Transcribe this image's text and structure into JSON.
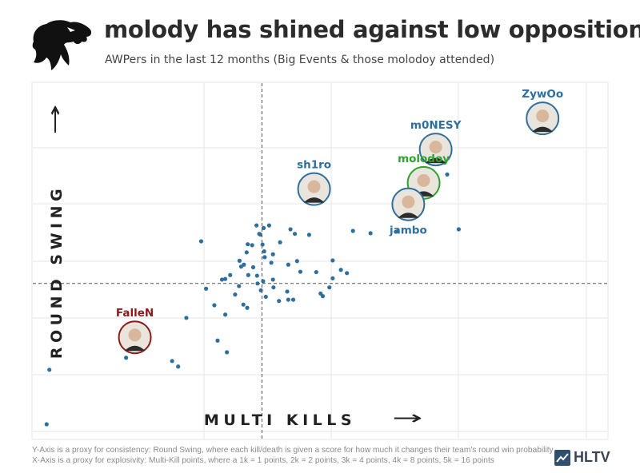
{
  "header": {
    "title": "molody has shined against low opposition",
    "subtitle": "AWPers in the last 12 months (Big Events & those molodoy attended)"
  },
  "logo": {
    "icon": "panther-logo-icon"
  },
  "footer": {
    "line1": "Y-Axis is a proxy for consistency: Round Swing, where each kill/death is given a  score for how much it changes their team's round win probability",
    "line2": "X-Axis is a proxy for explosivity: Multi-Kill points, where a 1k = 1 points, 2k = 2 points, 3k = 4 points, 4k = 8 points, 5k = 16 points",
    "brand": "HLTV",
    "brand_icon": "hltv-logo-icon"
  },
  "chart_data": {
    "type": "scatter",
    "xlabel": "MULTI KILLS",
    "ylabel": "ROUND SWING",
    "x_arrow": "→",
    "y_arrow": "↑",
    "grid": true,
    "xlim": [
      0,
      100
    ],
    "ylim": [
      0,
      100
    ],
    "average_lines": {
      "x": 40.8,
      "y": 43.4
    },
    "colors": {
      "point": "#2e6f9e",
      "label": "#2e6f9e",
      "highlight": "#2ca32c",
      "lowlight": "#8b1a1a",
      "reference": "#555555"
    },
    "labeled_players": [
      {
        "name": "ZywOo",
        "x": 92.0,
        "y": 94.3,
        "color": "#2e6f9e",
        "avatar": "player-avatar-icon"
      },
      {
        "name": "m0NESY",
        "x": 72.5,
        "y": 84.7,
        "color": "#2e6f9e",
        "avatar": "player-avatar-icon"
      },
      {
        "name": "sh1ro",
        "x": 50.3,
        "y": 72.5,
        "color": "#2e6f9e",
        "avatar": "player-avatar-icon"
      },
      {
        "name": "molodoy",
        "x": 70.3,
        "y": 74.4,
        "color": "#2ca32c",
        "avatar": "player-avatar-icon"
      },
      {
        "name": "jambo",
        "x": 67.5,
        "y": 67.8,
        "color": "#2e6f9e",
        "avatar": "player-avatar-icon"
      },
      {
        "name": "FalleN",
        "x": 17.6,
        "y": 26.8,
        "color": "#8b1a1a",
        "avatar": "player-avatar-icon"
      }
    ],
    "points": [
      [
        1.5,
        0
      ],
      [
        2,
        16.8
      ],
      [
        16,
        20.5
      ],
      [
        17.5,
        29.5
      ],
      [
        18.8,
        28.9
      ],
      [
        24.4,
        19.5
      ],
      [
        25.5,
        17.8
      ],
      [
        27,
        32.8
      ],
      [
        34.1,
        33.8
      ],
      [
        34.4,
        22.2
      ],
      [
        38.1,
        35.9
      ],
      [
        37.4,
        36.9
      ],
      [
        35.9,
        40
      ],
      [
        36.6,
        42.6
      ],
      [
        34.1,
        44.8
      ],
      [
        35,
        46
      ],
      [
        38.3,
        46
      ],
      [
        37.5,
        49.2
      ],
      [
        38,
        53
      ],
      [
        39,
        55.2
      ],
      [
        39.8,
        61.3
      ],
      [
        40.9,
        55.4
      ],
      [
        41.3,
        51.5
      ],
      [
        42.8,
        52.4
      ],
      [
        40,
        43.4
      ],
      [
        39.9,
        45.8
      ],
      [
        39.2,
        48.4
      ],
      [
        37,
        48.6
      ],
      [
        36.7,
        50.4
      ],
      [
        38.2,
        55.5
      ],
      [
        40.3,
        58.7
      ],
      [
        40.5,
        58.5
      ],
      [
        41.1,
        60.5
      ],
      [
        42.1,
        61.3
      ],
      [
        41.2,
        53.3
      ],
      [
        42.5,
        49.8
      ],
      [
        42.8,
        44.6
      ],
      [
        41,
        44.1
      ],
      [
        40.6,
        41.3
      ],
      [
        41.5,
        39.3
      ],
      [
        42.9,
        42.2
      ],
      [
        43.9,
        38
      ],
      [
        45.4,
        40.9
      ],
      [
        45.6,
        38.4
      ],
      [
        46.5,
        38.4
      ],
      [
        45.6,
        49.2
      ],
      [
        47.2,
        50.3
      ],
      [
        47.8,
        47
      ],
      [
        44.1,
        56.1
      ],
      [
        46.8,
        58.7
      ],
      [
        49.4,
        58.4
      ],
      [
        32.7,
        25.8
      ],
      [
        29.7,
        56.4
      ],
      [
        30.6,
        41.8
      ],
      [
        32.1,
        36.7
      ],
      [
        33.5,
        44.6
      ],
      [
        46,
        60.1
      ],
      [
        53.7,
        50.5
      ],
      [
        56.3,
        46.6
      ],
      [
        50.7,
        46.9
      ],
      [
        51.5,
        40.3
      ],
      [
        51.9,
        39.5
      ],
      [
        53.1,
        42.2
      ],
      [
        53.7,
        45
      ],
      [
        55.2,
        47.6
      ],
      [
        57.4,
        59.6
      ],
      [
        60.6,
        58.9
      ],
      [
        65.5,
        59.5
      ],
      [
        76.7,
        60.1
      ],
      [
        74.6,
        77
      ]
    ]
  }
}
